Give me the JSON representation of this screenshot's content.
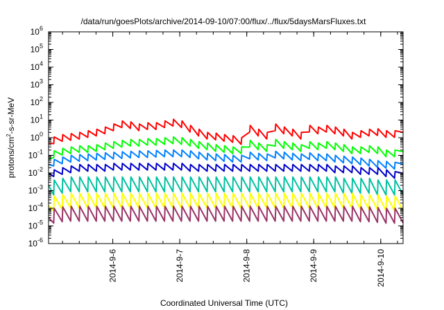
{
  "chart_data": {
    "type": "line",
    "title": "/data/run/goesPlots/archive/2014-09-10/07:00/flux/../flux/5daysMarsFluxes.txt",
    "xlabel": "Coordinated Universal Time (UTC)",
    "ylabel": {
      "base": "protons/cm",
      "sup": "2",
      "rest": "-s-sr-MeV"
    },
    "yscale": "log",
    "ylim_exponent": [
      -6,
      6
    ],
    "y_tick_labels": [
      {
        "base": "10",
        "exp": "-6"
      },
      {
        "base": "10",
        "exp": "-5"
      },
      {
        "base": "10",
        "exp": "-4"
      },
      {
        "base": "10",
        "exp": "-3"
      },
      {
        "base": "10",
        "exp": "-2"
      },
      {
        "base": "10",
        "exp": "-1"
      },
      {
        "base": "10",
        "exp": "0"
      },
      {
        "base": "10",
        "exp": "1"
      },
      {
        "base": "10",
        "exp": "2"
      },
      {
        "base": "10",
        "exp": "3"
      },
      {
        "base": "10",
        "exp": "4"
      },
      {
        "base": "10",
        "exp": "5"
      },
      {
        "base": "10",
        "exp": "6"
      }
    ],
    "x_tick_labels": [
      "2014-9-6",
      "2014-9-7",
      "2014-9-8",
      "2014-9-9",
      "2014-9-10"
    ],
    "xlim": [
      "2014-09-05T01:00",
      "2014-09-10T08:00"
    ],
    "grid": false,
    "legend": "none",
    "series": [
      {
        "color": "#ff0000",
        "y_start": 0.5,
        "spikes": [
          1.1,
          1.5,
          1.7,
          2,
          2.5,
          3,
          4,
          6,
          9,
          8,
          6,
          7,
          7,
          9,
          11,
          9,
          5,
          3,
          2,
          1.8,
          1.5,
          1.3,
          1.0,
          5,
          3,
          2,
          6,
          4,
          3,
          2,
          5,
          4,
          5,
          4,
          3,
          2,
          2.5,
          3,
          3.2,
          2.5,
          2.5
        ]
      },
      {
        "color": "#00ff00",
        "y_start": 0.06,
        "spikes": [
          0.18,
          0.25,
          0.3,
          0.35,
          0.35,
          0.4,
          0.5,
          0.6,
          0.7,
          0.8,
          0.8,
          0.9,
          0.9,
          1.0,
          1.1,
          1.0,
          0.8,
          0.6,
          0.5,
          0.4,
          0.35,
          0.3,
          0.3,
          0.7,
          0.5,
          0.4,
          0.8,
          0.6,
          0.5,
          0.4,
          0.6,
          0.5,
          0.6,
          0.5,
          0.4,
          0.3,
          0.3,
          0.35,
          0.3,
          0.2,
          0.2
        ]
      },
      {
        "color": "#0080ff",
        "y_start": 0.03,
        "spikes": [
          0.06,
          0.08,
          0.1,
          0.11,
          0.12,
          0.13,
          0.14,
          0.15,
          0.16,
          0.17,
          0.18,
          0.18,
          0.19,
          0.2,
          0.2,
          0.2,
          0.18,
          0.15,
          0.13,
          0.12,
          0.11,
          0.1,
          0.1,
          0.15,
          0.13,
          0.12,
          0.17,
          0.15,
          0.13,
          0.12,
          0.14,
          0.12,
          0.12,
          0.1,
          0.09,
          0.08,
          0.07,
          0.06,
          0.05,
          0.045,
          0.04
        ]
      },
      {
        "color": "#0000cc",
        "y_start": 0.01,
        "spikes": [
          0.015,
          0.02,
          0.025,
          0.03,
          0.03,
          0.03,
          0.03,
          0.035,
          0.035,
          0.035,
          0.035,
          0.035,
          0.035,
          0.035,
          0.035,
          0.035,
          0.03,
          0.03,
          0.03,
          0.03,
          0.03,
          0.03,
          0.03,
          0.03,
          0.03,
          0.03,
          0.03,
          0.03,
          0.03,
          0.03,
          0.03,
          0.03,
          0.03,
          0.025,
          0.025,
          0.025,
          0.02,
          0.02,
          0.02,
          0.015,
          0.012
        ]
      },
      {
        "color": "#00c0a0",
        "y_start": 0.002,
        "spikes": [
          0.004,
          0.005,
          0.006,
          0.006,
          0.006,
          0.006,
          0.006,
          0.006,
          0.006,
          0.006,
          0.006,
          0.006,
          0.006,
          0.006,
          0.006,
          0.006,
          0.006,
          0.006,
          0.006,
          0.006,
          0.006,
          0.006,
          0.006,
          0.006,
          0.006,
          0.006,
          0.006,
          0.006,
          0.006,
          0.006,
          0.006,
          0.006,
          0.006,
          0.006,
          0.005,
          0.005,
          0.005,
          0.005,
          0.004,
          0.004,
          0.004
        ]
      },
      {
        "color": "#ffff00",
        "y_start": 0.00015,
        "spikes": [
          0.0005,
          0.0006,
          0.0007,
          0.0007,
          0.0007,
          0.0007,
          0.0007,
          0.0007,
          0.0007,
          0.0007,
          0.0007,
          0.0007,
          0.0007,
          0.0007,
          0.0007,
          0.0007,
          0.0007,
          0.0007,
          0.0007,
          0.0007,
          0.0007,
          0.0007,
          0.0007,
          0.0007,
          0.0007,
          0.0007,
          0.0007,
          0.0007,
          0.0007,
          0.0007,
          0.0007,
          0.0007,
          0.0007,
          0.0007,
          0.0007,
          0.0007,
          0.0006,
          0.0006,
          0.0006,
          0.0005,
          0.0005
        ]
      },
      {
        "color": "#993366",
        "y_start": 3e-05,
        "spikes": [
          0.0001,
          0.00012,
          0.00013,
          0.00013,
          0.00013,
          0.00013,
          0.00013,
          0.00013,
          0.00013,
          0.00013,
          0.00013,
          0.00013,
          0.00013,
          0.00013,
          0.00013,
          0.00013,
          0.00013,
          0.00013,
          0.00013,
          0.00013,
          0.00013,
          0.00013,
          0.00013,
          0.00013,
          0.00013,
          0.00013,
          0.00013,
          0.00013,
          0.00013,
          0.00013,
          0.00013,
          0.00013,
          0.00013,
          0.00013,
          0.00013,
          0.00013,
          0.00012,
          0.00012,
          0.00011,
          0.0001,
          0.0001
        ]
      }
    ]
  }
}
